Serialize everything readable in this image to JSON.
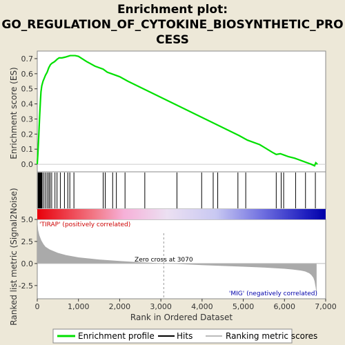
{
  "chart_data": {
    "type": "line",
    "title_line1": "Enrichment plot:",
    "title_line2": "GO_REGULATION_OF_CYTOKINE_BIOSYNTHETIC_PRO",
    "title_line3": "CESS",
    "xlabel": "Rank in Ordered Dataset",
    "ylabel_top": "Enrichment score (ES)",
    "ylabel_bottom": "Ranked list metric (Signal2Noise)",
    "xlim": [
      0,
      7000
    ],
    "x_ticks": [
      "0",
      "1,000",
      "2,000",
      "3,000",
      "4,000",
      "5,000",
      "6,000",
      "7,000"
    ],
    "x_tick_values": [
      0,
      1000,
      2000,
      3000,
      4000,
      5000,
      6000,
      7000
    ],
    "es_ylim": [
      -0.05,
      0.75
    ],
    "es_ticks": [
      "0.0",
      "0.1",
      "0.2",
      "0.3",
      "0.4",
      "0.5",
      "0.6",
      "0.7"
    ],
    "es_tick_values": [
      0.0,
      0.1,
      0.2,
      0.3,
      0.4,
      0.5,
      0.6,
      0.7
    ],
    "metric_ylim": [
      -4.0,
      5.0
    ],
    "metric_ticks": [
      "5.0",
      "2.5",
      "0.0",
      "-2.5"
    ],
    "metric_tick_values": [
      5.0,
      2.5,
      0.0,
      -2.5
    ],
    "es_curve": {
      "x": [
        0,
        15,
        30,
        45,
        60,
        75,
        90,
        110,
        140,
        170,
        200,
        240,
        280,
        320,
        360,
        420,
        480,
        530,
        600,
        680,
        740,
        800,
        860,
        920,
        1000,
        1200,
        1400,
        1600,
        1700,
        1800,
        2000,
        2200,
        2500,
        2800,
        3100,
        3400,
        3700,
        4000,
        4300,
        4600,
        4900,
        5100,
        5400,
        5700,
        5800,
        5900,
        6000,
        6100,
        6250,
        6350,
        6450,
        6550,
        6650,
        6730,
        6760,
        6800
      ],
      "y": [
        0.0,
        0.07,
        0.15,
        0.24,
        0.33,
        0.41,
        0.48,
        0.52,
        0.55,
        0.57,
        0.59,
        0.61,
        0.64,
        0.66,
        0.67,
        0.68,
        0.695,
        0.705,
        0.705,
        0.71,
        0.715,
        0.72,
        0.72,
        0.72,
        0.715,
        0.68,
        0.65,
        0.63,
        0.61,
        0.6,
        0.58,
        0.55,
        0.51,
        0.47,
        0.43,
        0.39,
        0.35,
        0.31,
        0.27,
        0.23,
        0.19,
        0.16,
        0.13,
        0.08,
        0.065,
        0.07,
        0.06,
        0.05,
        0.04,
        0.03,
        0.02,
        0.01,
        0.0,
        -0.01,
        0.01,
        0.0
      ]
    },
    "hits": [
      20,
      30,
      40,
      50,
      55,
      60,
      70,
      80,
      90,
      100,
      110,
      120,
      160,
      200,
      240,
      280,
      310,
      350,
      430,
      480,
      560,
      660,
      740,
      790,
      890,
      1600,
      1650,
      1830,
      1920,
      2130,
      2610,
      3390,
      3990,
      4270,
      4380,
      4870,
      5060,
      5800,
      5920,
      5980,
      6270,
      6510,
      6750
    ],
    "metric_curve": {
      "x": [
        0,
        20,
        50,
        100,
        150,
        200,
        300,
        400,
        500,
        700,
        1000,
        1500,
        2000,
        2500,
        3000,
        3070,
        3500,
        4000,
        4500,
        5000,
        5500,
        6000,
        6200,
        6400,
        6500,
        6600,
        6650,
        6700,
        6730,
        6760,
        6780
      ],
      "y": [
        5.0,
        3.8,
        3.2,
        2.6,
        2.2,
        1.9,
        1.6,
        1.4,
        1.2,
        0.95,
        0.7,
        0.45,
        0.28,
        0.14,
        0.03,
        0.0,
        -0.08,
        -0.18,
        -0.27,
        -0.36,
        -0.46,
        -0.6,
        -0.68,
        -0.8,
        -0.9,
        -1.1,
        -1.3,
        -1.6,
        -2.0,
        -2.8,
        -3.8
      ]
    },
    "zero_cross_label": "Zero cross at 3070",
    "zero_cross_x": 3070,
    "pos_label": "'TIRAP' (positively correlated)",
    "neg_label": "'MIG' (negatively correlated)",
    "colors": {
      "es_line": "#00e000",
      "hit": "#000000",
      "metric_fill": "#aaaaaa",
      "pos_label": "#cc0000",
      "neg_label": "#0000aa",
      "plot_bg": "#ffffff",
      "page_bg": "#ede8d8"
    },
    "legend": [
      {
        "label": "Enrichment profile",
        "icon": "green-line"
      },
      {
        "label": "Hits",
        "icon": "black-line"
      },
      {
        "label": "Ranking metric scores",
        "icon": "gray-line"
      }
    ]
  }
}
